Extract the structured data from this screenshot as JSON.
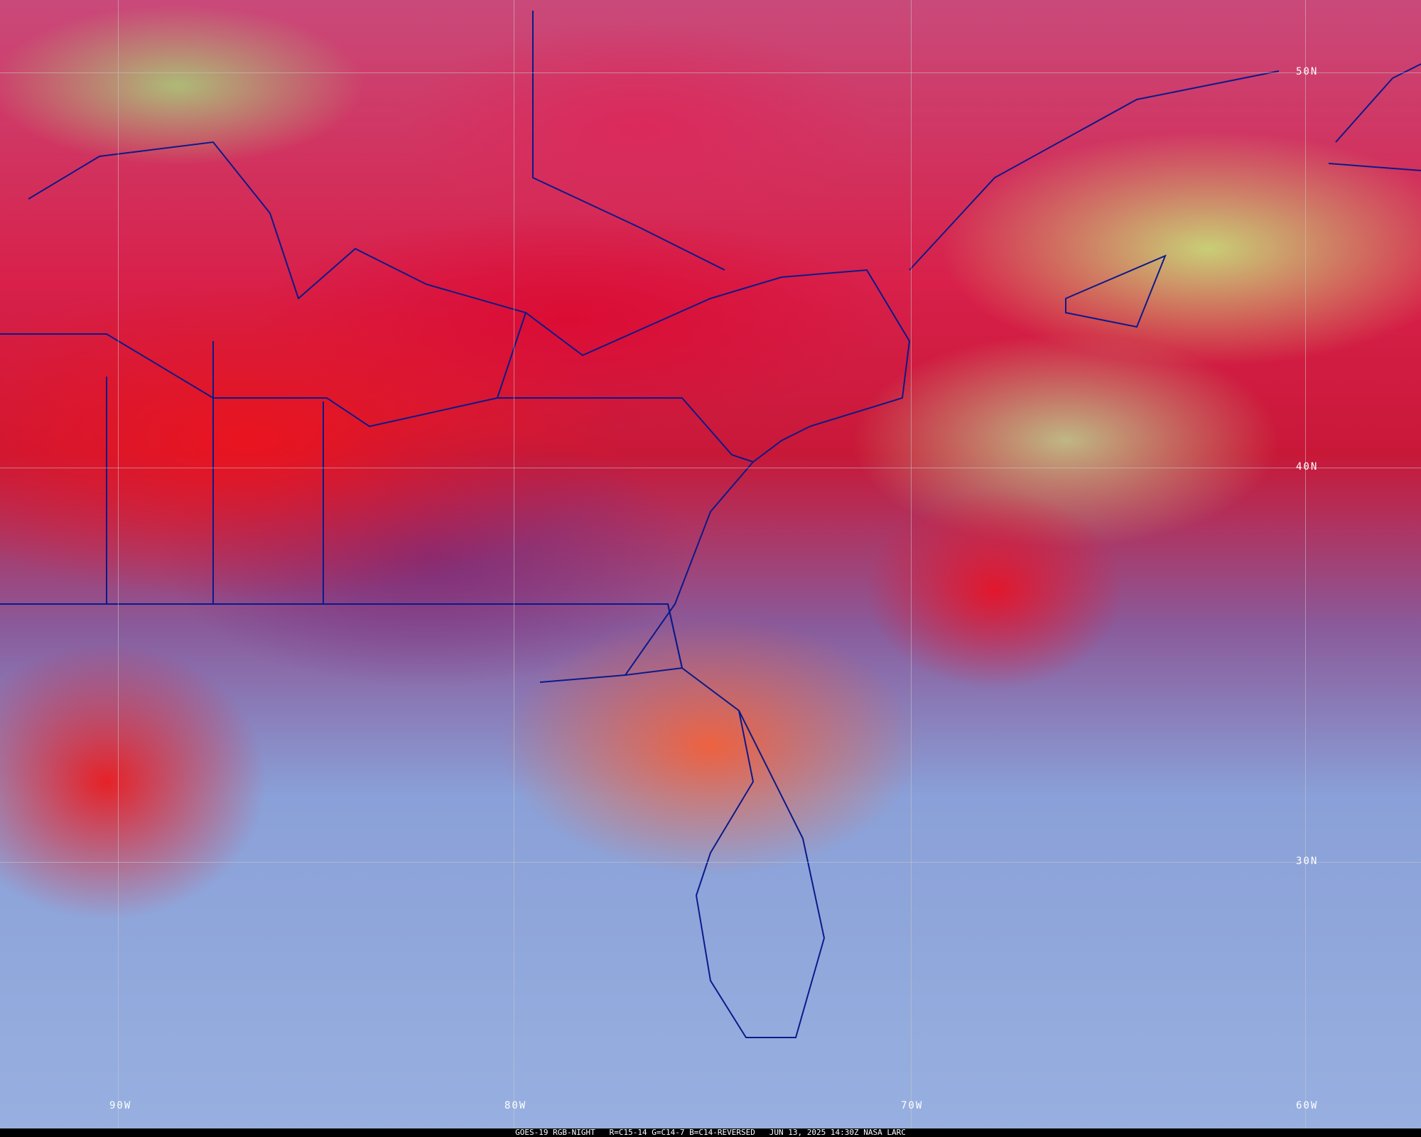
{
  "map": {
    "latitude_labels": [
      "50N",
      "40N",
      "30N"
    ],
    "longitude_labels": [
      "90W",
      "80W",
      "70W",
      "60W"
    ],
    "boundary_color": "#0a1a8a",
    "grid_color": "#c8c8c8"
  },
  "caption": {
    "product": "GOES-19 RGB-NIGHT",
    "channels": "R=C15-14 G=C14-7 B=C14-REVERSED",
    "datetime": "JUN 13, 2025 14:30Z",
    "source": "NASA LARC"
  }
}
